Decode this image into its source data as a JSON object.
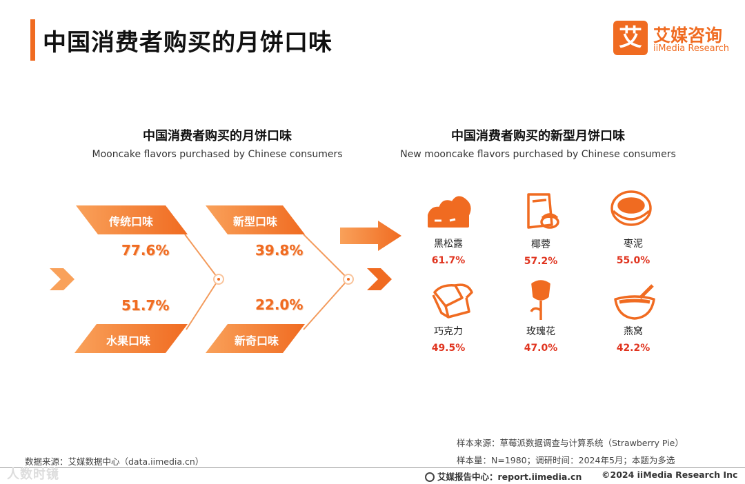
{
  "header": {
    "title": "中国消费者购买的月饼口味",
    "logo_mark": "艾",
    "logo_cn": "艾媒咨询",
    "logo_en": "iiMedia Research"
  },
  "left_section": {
    "title": "中国消费者购买的月饼口味",
    "subtitle": "Mooncake flavors purchased by Chinese consumers"
  },
  "right_section": {
    "title": "中国消费者购买的新型月饼口味",
    "subtitle": "New mooncake flavors purchased by Chinese consumers"
  },
  "chart_data": [
    {
      "type": "bar",
      "title": "中国消费者购买的月饼口味",
      "subtitle": "Mooncake flavors purchased by Chinese consumers",
      "categories": [
        "传统口味",
        "新型口味",
        "水果口味",
        "新奇口味"
      ],
      "values": [
        77.6,
        39.8,
        51.7,
        22.0
      ],
      "value_labels": [
        "77.6%",
        "39.8%",
        "51.7%",
        "22.0%"
      ],
      "unit": "%"
    },
    {
      "type": "bar",
      "title": "中国消费者购买的新型月饼口味",
      "subtitle": "New mooncake flavors purchased by Chinese consumers",
      "categories": [
        "黑松露",
        "椰蓉",
        "枣泥",
        "巧克力",
        "玫瑰花",
        "燕窝"
      ],
      "values": [
        61.7,
        57.2,
        55.0,
        49.5,
        47.0,
        42.2
      ],
      "value_labels": [
        "61.7%",
        "57.2%",
        "55.0%",
        "49.5%",
        "47.0%",
        "42.2%"
      ],
      "icons": [
        "truffle-icon",
        "coconut-icon",
        "date-paste-icon",
        "chocolate-icon",
        "rose-icon",
        "birds-nest-icon"
      ],
      "unit": "%"
    }
  ],
  "footer": {
    "data_source": "数据来源：艾媒数据中心（data.iimedia.cn）",
    "sample_source": "样本来源：草莓派数据调查与计算系统（Strawberry Pie）",
    "sample_info": "样本量：N=1980；调研时间：2024年5月；本题为多选",
    "report_center": "艾媒报告中心：report.iimedia.cn",
    "copyright": "©2024 iiMedia Research Inc",
    "watermark": "人数时镜"
  },
  "colors": {
    "accent": "#f06b21",
    "accent_light": "#f9a15a",
    "value_red": "#e0341f"
  }
}
